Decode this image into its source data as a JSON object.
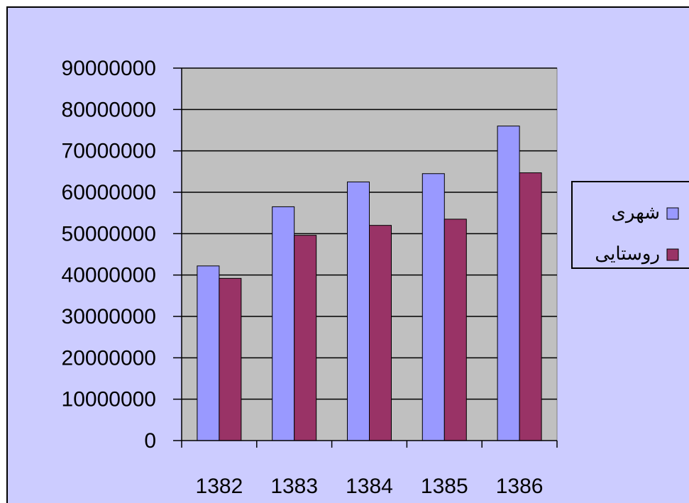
{
  "chart_data": {
    "type": "bar",
    "categories": [
      "1382",
      "1383",
      "1384",
      "1385",
      "1386"
    ],
    "series": [
      {
        "name": "شهری",
        "color": "#9999ff",
        "values": [
          42200000,
          56500000,
          62500000,
          64500000,
          76000000
        ]
      },
      {
        "name": "روستایی",
        "color": "#993366",
        "values": [
          39200000,
          49600000,
          52000000,
          53500000,
          64700000
        ]
      }
    ],
    "ylim": [
      0,
      90000000
    ],
    "yticks": [
      0,
      10000000,
      20000000,
      30000000,
      40000000,
      50000000,
      60000000,
      70000000,
      80000000,
      90000000
    ],
    "grid": true,
    "legend": "right"
  }
}
